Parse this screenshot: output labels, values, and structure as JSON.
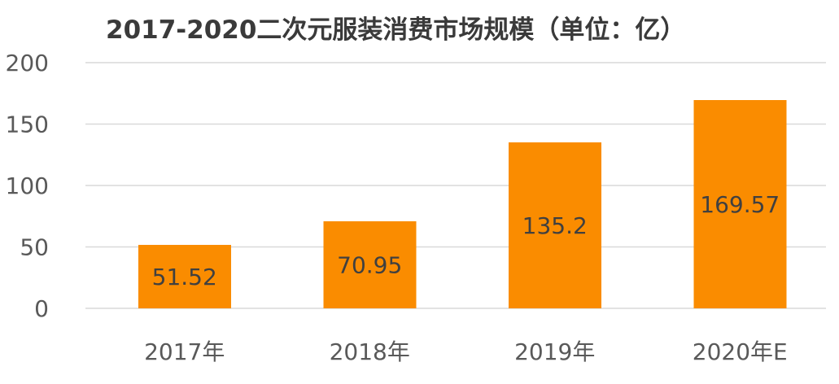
{
  "chart_data": {
    "type": "bar",
    "title": "2017-2020二次元服装消费市场规模（单位：亿）",
    "xlabel": "",
    "ylabel": "",
    "categories": [
      "2017年",
      "2018年",
      "2019年",
      "2020年E"
    ],
    "values": [
      51.52,
      70.95,
      135.2,
      169.57
    ],
    "data_labels": [
      "51.52",
      "70.95",
      "135.2",
      "169.57"
    ],
    "ylim": [
      0,
      200
    ],
    "yticks": [
      0,
      50,
      100,
      150,
      200
    ],
    "ytick_labels": [
      "0",
      "50",
      "100",
      "150",
      "200"
    ],
    "grid": true,
    "legend": "none",
    "colors": {
      "bar": "#fa8c00",
      "grid": "#d9d9d9",
      "text": "#595959"
    }
  }
}
